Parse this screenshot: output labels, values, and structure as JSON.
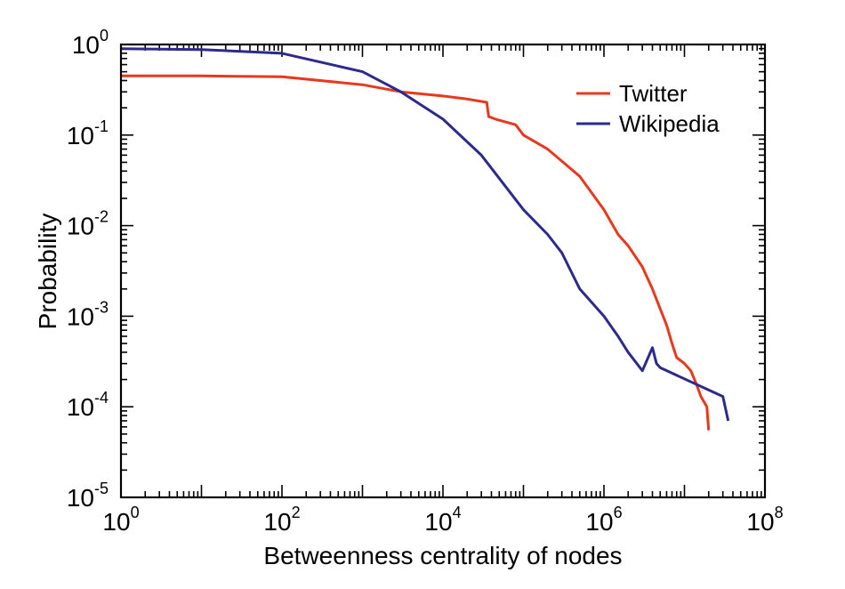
{
  "chart_data": {
    "type": "line",
    "xlabel": "Betweenness centrality of nodes",
    "ylabel": "Probability",
    "x_scale": "log",
    "y_scale": "log",
    "xlim": [
      1,
      100000000
    ],
    "ylim": [
      1e-05,
      1
    ],
    "grid": false,
    "legend_position": "top-right",
    "x_ticks": [
      {
        "base": "10",
        "exp": "0",
        "value": 1
      },
      {
        "base": "10",
        "exp": "2",
        "value": 100
      },
      {
        "base": "10",
        "exp": "4",
        "value": 10000
      },
      {
        "base": "10",
        "exp": "6",
        "value": 1000000
      },
      {
        "base": "10",
        "exp": "8",
        "value": 100000000
      }
    ],
    "y_ticks": [
      {
        "base": "10",
        "exp": "0",
        "value": 1
      },
      {
        "base": "10",
        "exp": "-1",
        "value": 0.1
      },
      {
        "base": "10",
        "exp": "-2",
        "value": 0.01
      },
      {
        "base": "10",
        "exp": "-3",
        "value": 0.001
      },
      {
        "base": "10",
        "exp": "-4",
        "value": 0.0001
      },
      {
        "base": "10",
        "exp": "-5",
        "value": 1e-05
      }
    ],
    "series": [
      {
        "name": "Twitter",
        "color": "#e8391f",
        "x": [
          1,
          10,
          100,
          1000,
          3000,
          10000,
          20000,
          35000,
          37000,
          45000,
          80000,
          100000,
          200000,
          500000,
          1000000,
          1500000,
          2000000,
          3000000,
          4000000,
          5000000,
          6000000,
          7000000,
          8000000,
          10000000,
          12000000,
          14000000,
          16000000,
          19000000,
          20000000
        ],
        "y": [
          0.45,
          0.45,
          0.44,
          0.36,
          0.3,
          0.27,
          0.25,
          0.23,
          0.16,
          0.15,
          0.13,
          0.1,
          0.07,
          0.035,
          0.015,
          0.008,
          0.006,
          0.0035,
          0.002,
          0.0012,
          0.0008,
          0.0005,
          0.00035,
          0.0003,
          0.00025,
          0.00018,
          0.00013,
          0.0001,
          5.5e-05
        ]
      },
      {
        "name": "Wikipedia",
        "color": "#2e2a8c",
        "x": [
          1,
          10,
          100,
          1000,
          3000,
          10000,
          30000,
          100000,
          200000,
          300000,
          500000,
          1000000,
          1500000,
          2000000,
          3000000,
          4000000,
          4500000,
          5000000,
          30000000,
          35000000
        ],
        "y": [
          0.9,
          0.88,
          0.8,
          0.5,
          0.3,
          0.15,
          0.06,
          0.015,
          0.008,
          0.005,
          0.002,
          0.001,
          0.0006,
          0.0004,
          0.00025,
          0.00045,
          0.0003,
          0.00027,
          0.00013,
          7e-05
        ]
      }
    ]
  }
}
